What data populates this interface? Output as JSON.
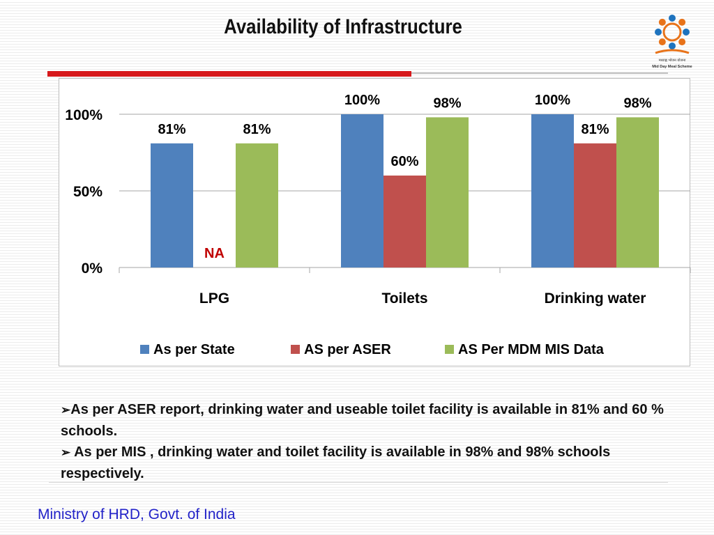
{
  "slide": {
    "title": "Availability of Infrastructure",
    "footer": "Ministry of HRD, Govt. of India",
    "logo_text": "Mid Day Meal Scheme",
    "bullets": [
      {
        "marker": "➢",
        "text": "As per ASER report, drinking water and useable toilet facility is available in 81%  and 60 % schools."
      },
      {
        "marker": "➢",
        "text": " As per MIS , drinking water  and toilet facility is available in 98% and 98% schools respectively."
      }
    ]
  },
  "chart_data": {
    "type": "bar",
    "categories": [
      "LPG",
      "Toilets",
      "Drinking water"
    ],
    "series": [
      {
        "name": "As per State",
        "values": [
          81,
          100,
          100
        ],
        "labels": [
          "81%",
          "100%",
          "100%"
        ],
        "color": "#4f81bd"
      },
      {
        "name": "AS per ASER",
        "values": [
          null,
          60,
          81
        ],
        "labels": [
          "NA",
          "60%",
          "81%"
        ],
        "color": "#c0504d"
      },
      {
        "name": "AS Per MDM MIS Data",
        "values": [
          81,
          98,
          98
        ],
        "labels": [
          "81%",
          "98%",
          "98%"
        ],
        "color": "#9bbb59"
      }
    ],
    "yticks": [
      "0%",
      "50%",
      "100%"
    ],
    "ylim": [
      0,
      100
    ],
    "grid": true,
    "legend": "bottom",
    "na_color": "#c00000"
  }
}
